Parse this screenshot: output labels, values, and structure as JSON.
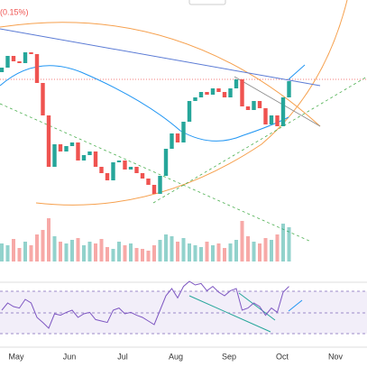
{
  "chart_data": {
    "type": "candlestick",
    "annotation": "(0.15%)",
    "x_labels": [
      "May",
      "Jun",
      "Jul",
      "Aug",
      "Sep",
      "Oct",
      "Nov"
    ],
    "ylim": [
      0,
      240
    ],
    "up_color": "#26a69a",
    "down_color": "#ef5350",
    "candles": {
      "open": [
        160,
        165,
        178,
        172,
        170,
        182,
        180,
        148,
        112,
        55,
        80,
        72,
        78,
        82,
        62,
        68,
        72,
        55,
        48,
        40,
        60,
        62,
        52,
        55,
        48,
        42,
        35,
        25,
        45,
        75,
        92,
        82,
        105,
        128,
        132,
        138,
        135,
        142,
        138,
        132,
        142,
        152,
        122,
        118,
        128,
        120,
        102,
        112,
        100,
        132
      ],
      "close": [
        165,
        178,
        172,
        170,
        182,
        180,
        148,
        112,
        55,
        80,
        72,
        78,
        82,
        62,
        68,
        72,
        55,
        48,
        40,
        60,
        62,
        52,
        55,
        48,
        42,
        35,
        25,
        45,
        75,
        92,
        82,
        105,
        128,
        132,
        138,
        135,
        142,
        138,
        132,
        142,
        152,
        122,
        118,
        128,
        120,
        102,
        112,
        100,
        132,
        150
      ]
    },
    "volume": {
      "ylim": [
        0,
        50
      ],
      "values": [
        20,
        18,
        25,
        15,
        22,
        18,
        30,
        35,
        48,
        28,
        22,
        20,
        24,
        26,
        18,
        22,
        20,
        25,
        16,
        14,
        22,
        18,
        20,
        15,
        14,
        12,
        18,
        24,
        30,
        28,
        22,
        26,
        20,
        18,
        16,
        22,
        18,
        20,
        15,
        20,
        24,
        45,
        28,
        22,
        20,
        26,
        24,
        30,
        42,
        38
      ]
    },
    "rsi": {
      "ylim": [
        0,
        100
      ],
      "color": "#7e57c2",
      "values": [
        45,
        55,
        50,
        48,
        60,
        55,
        35,
        28,
        20,
        40,
        38,
        42,
        45,
        35,
        40,
        42,
        32,
        30,
        28,
        45,
        48,
        40,
        42,
        38,
        35,
        30,
        25,
        45,
        65,
        75,
        62,
        78,
        85,
        80,
        82,
        72,
        78,
        70,
        65,
        72,
        75,
        45,
        48,
        55,
        50,
        38,
        48,
        42,
        70,
        78
      ]
    }
  }
}
